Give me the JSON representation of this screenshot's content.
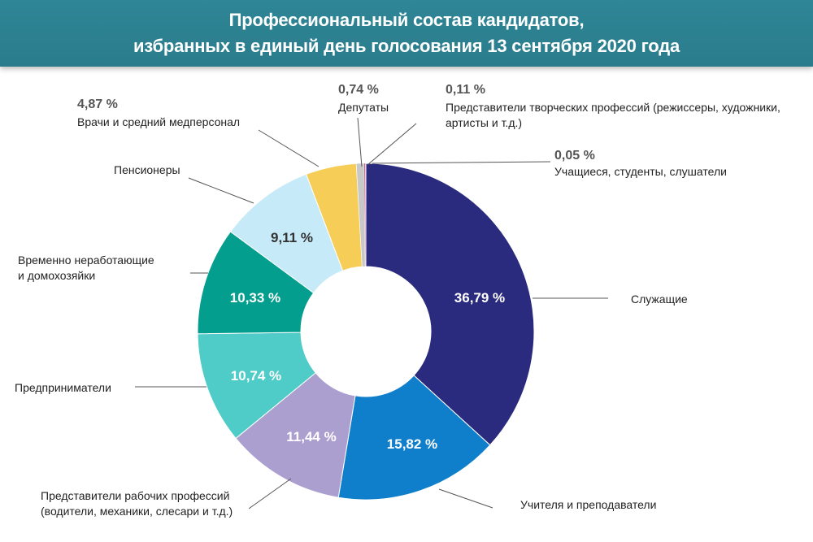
{
  "header": {
    "title_line1": "Профессиональный состав кандидатов,",
    "title_line2": "избранных в единый день голосования 13 сентября 2020 года"
  },
  "chart_data": {
    "type": "pie",
    "variant": "donut",
    "start_angle": "12 o'clock",
    "direction": "clockwise",
    "categories": [
      "Служащие",
      "Учителя и преподаватели",
      "Представители рабочих профессий (водители, механики, слесари и т.д.)",
      "Предприниматели",
      "Временно неработающие и домохозяйки",
      "Пенсионеры",
      "Врачи и средний медперсонал",
      "Депутаты",
      "Представители творческих профессий (режиссеры, художники, артисты и т.д.)",
      "Учащиеся, студенты, слушатели"
    ],
    "values": [
      36.79,
      15.82,
      11.44,
      10.74,
      10.33,
      9.11,
      4.87,
      0.74,
      0.11,
      0.05
    ],
    "value_labels": [
      "36,79 %",
      "15,82 %",
      "11,44 %",
      "10,74 %",
      "10,33 %",
      "9,11 %",
      "4,87 %",
      "0,74 %",
      "0,11 %",
      "0,05 %"
    ],
    "colors": [
      "#2a2a7e",
      "#0f7ecb",
      "#ab9fd0",
      "#4fcbc8",
      "#049e8e",
      "#c7eaf8",
      "#f6cd57",
      "#c8c8c8",
      "#d03a7a",
      "#a0a0a0"
    ],
    "label_lines": [
      [
        "Служащие"
      ],
      [
        "Учителя и преподаватели"
      ],
      [
        "Представители рабочих профессий",
        "(водители, механики, слесари и т.д.)"
      ],
      [
        "Предприниматели"
      ],
      [
        "Временно неработающие",
        "и домохозяйки"
      ],
      [
        "Пенсионеры"
      ],
      [
        "Врачи и средний медперсонал"
      ],
      [
        "Депутаты"
      ],
      [
        "Представители творческих профессий (режиссеры, художники,",
        "артисты и т.д.)"
      ],
      [
        "Учащиеся, студенты, слушатели"
      ]
    ]
  }
}
